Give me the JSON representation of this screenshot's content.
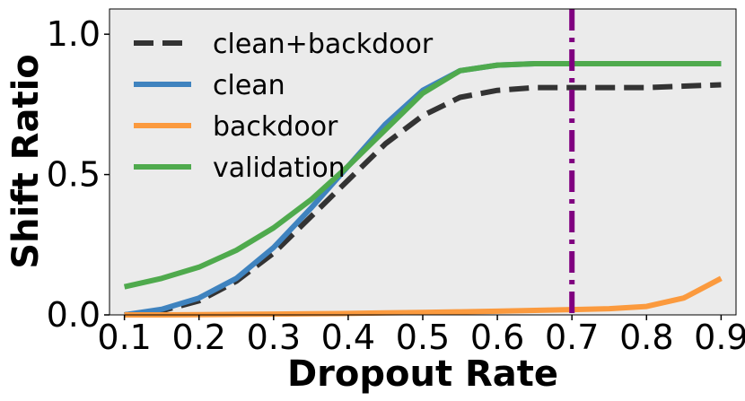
{
  "chart_data": {
    "type": "line",
    "xlabel": "Dropout Rate",
    "ylabel": "Shift Ratio",
    "xlim": [
      0.08,
      0.92
    ],
    "ylim": [
      0.0,
      1.09
    ],
    "x_ticks": [
      0.1,
      0.2,
      0.3,
      0.4,
      0.5,
      0.6,
      0.7,
      0.8,
      0.9
    ],
    "x_tick_labels": [
      "0.1",
      "0.2",
      "0.3",
      "0.4",
      "0.5",
      "0.6",
      "0.7",
      "0.8",
      "0.9"
    ],
    "y_ticks": [
      0.0,
      0.5,
      1.0
    ],
    "y_tick_labels": [
      "0.0",
      "0.5",
      "1.0"
    ],
    "grid": false,
    "background": "#ebebeb",
    "legend_position": "upper-left",
    "x": [
      0.1,
      0.15,
      0.2,
      0.25,
      0.3,
      0.35,
      0.4,
      0.45,
      0.5,
      0.55,
      0.6,
      0.65,
      0.7,
      0.75,
      0.8,
      0.85,
      0.9
    ],
    "series": [
      {
        "name": "clean+backdoor",
        "color": "#333333",
        "style": "dashed",
        "values": [
          0.0,
          0.015,
          0.05,
          0.12,
          0.22,
          0.35,
          0.48,
          0.61,
          0.71,
          0.775,
          0.8,
          0.81,
          0.81,
          0.81,
          0.81,
          0.815,
          0.82
        ]
      },
      {
        "name": "clean",
        "color": "#3f83bf",
        "style": "solid",
        "values": [
          0.0,
          0.02,
          0.06,
          0.13,
          0.24,
          0.38,
          0.53,
          0.68,
          0.8,
          0.87,
          0.89,
          0.895,
          0.895,
          0.895,
          0.895,
          0.895,
          0.895
        ]
      },
      {
        "name": "backdoor",
        "color": "#fb9a3e",
        "style": "solid",
        "values": [
          0.0,
          0.0,
          0.001,
          0.002,
          0.003,
          0.004,
          0.005,
          0.007,
          0.009,
          0.011,
          0.013,
          0.016,
          0.019,
          0.022,
          0.03,
          0.06,
          0.13
        ]
      },
      {
        "name": "validation",
        "color": "#4faa4d",
        "style": "solid",
        "values": [
          0.1,
          0.13,
          0.17,
          0.23,
          0.31,
          0.41,
          0.53,
          0.66,
          0.79,
          0.87,
          0.89,
          0.895,
          0.895,
          0.895,
          0.895,
          0.895,
          0.895
        ]
      }
    ],
    "vline": {
      "x": 0.7,
      "color": "#800080",
      "style": "dashdot"
    }
  }
}
